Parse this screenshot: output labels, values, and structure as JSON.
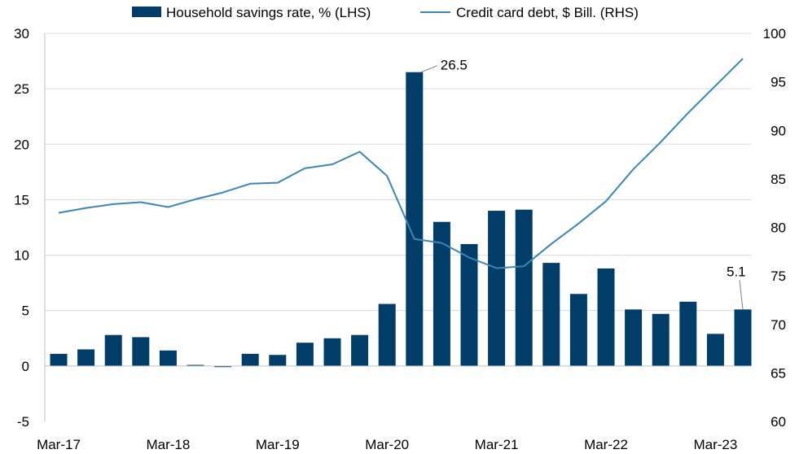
{
  "chart_data": {
    "type": "bar+line",
    "title": "",
    "legend": {
      "placement": "top-center",
      "entries": [
        {
          "name": "Household savings rate, % (LHS)",
          "kind": "bar"
        },
        {
          "name": "Credit card debt, $ Bill. (RHS)",
          "kind": "line"
        }
      ]
    },
    "x_tick_labels": [
      "Mar-17",
      "Mar-18",
      "Mar-19",
      "Mar-20",
      "Mar-21",
      "Mar-22",
      "Mar-23"
    ],
    "left_axis": {
      "ylim": [
        -5,
        30
      ],
      "ticks": [
        "-5",
        "0",
        "5",
        "10",
        "15",
        "20",
        "25",
        "30"
      ]
    },
    "right_axis": {
      "ylim": [
        60,
        100
      ],
      "ticks": [
        "60",
        "65",
        "70",
        "75",
        "80",
        "85",
        "90",
        "95",
        "100"
      ]
    },
    "grid": true,
    "series": [
      {
        "name": "Household savings rate, % (LHS)",
        "type": "bar",
        "axis": "left",
        "color": "#003e69",
        "values": [
          1.1,
          1.5,
          2.8,
          2.6,
          1.4,
          0.1,
          -0.1,
          1.1,
          1.0,
          2.1,
          2.5,
          2.8,
          5.6,
          26.5,
          13.0,
          11.0,
          14.0,
          14.1,
          9.3,
          6.5,
          8.8,
          5.1,
          4.7,
          5.8,
          2.9,
          5.1
        ]
      },
      {
        "name": "Credit card debt, $ Bill. (RHS)",
        "type": "line",
        "axis": "right",
        "color": "#3a86b8",
        "values": [
          81.5,
          82.0,
          82.4,
          82.6,
          82.1,
          82.9,
          83.6,
          84.5,
          84.6,
          86.1,
          86.5,
          87.8,
          85.3,
          78.8,
          78.4,
          76.9,
          75.8,
          76.0,
          78.3,
          80.4,
          82.7,
          86.0,
          88.8,
          91.8,
          94.6,
          97.4
        ]
      }
    ],
    "annotations": [
      {
        "text": "26.5",
        "series": "Household savings rate, % (LHS)",
        "index": 13
      },
      {
        "text": "5.1",
        "series": "Household savings rate, % (LHS)",
        "index": 25
      }
    ],
    "colors": {
      "grid": "#d9d9d9",
      "axis": "#bfbfbf",
      "leader": "#7f7f7f"
    }
  }
}
